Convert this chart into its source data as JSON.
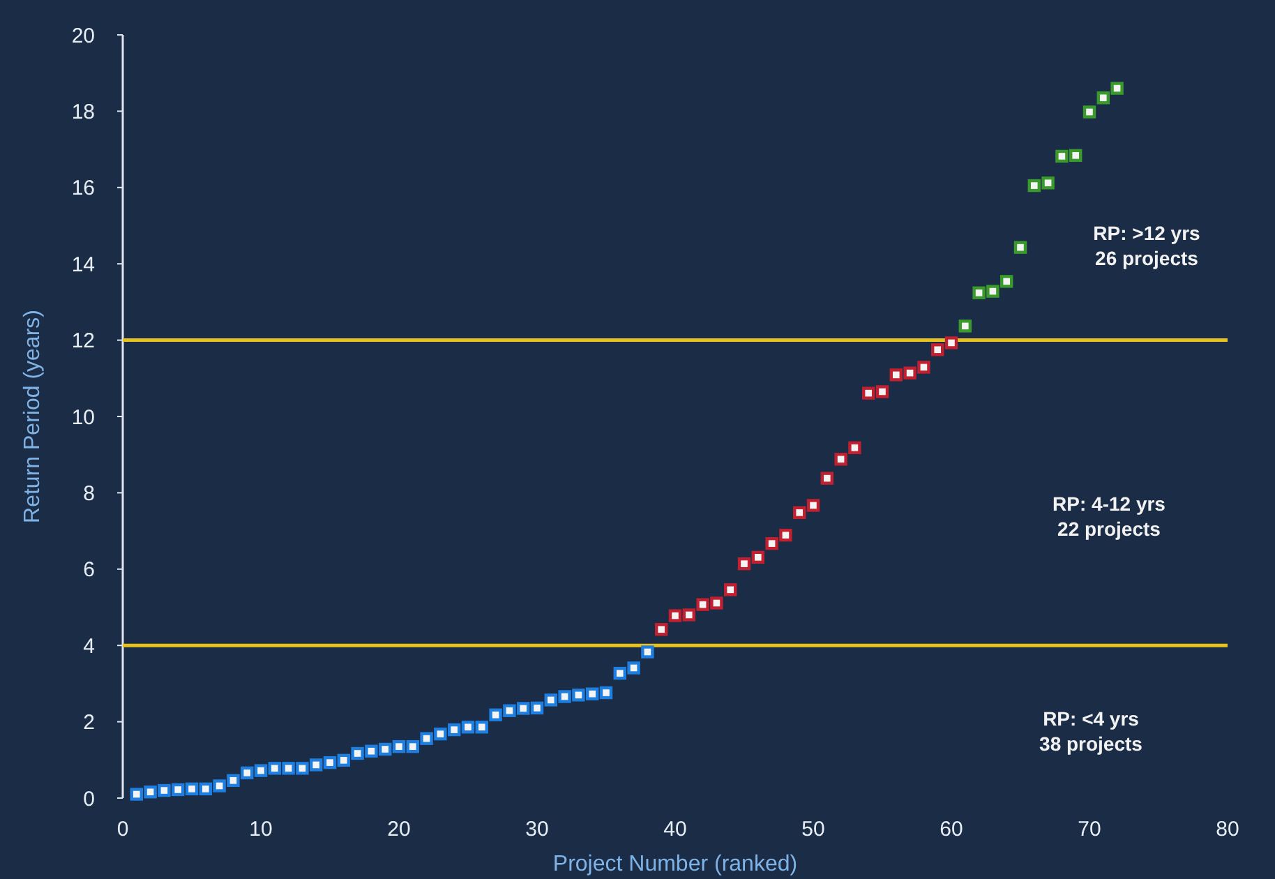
{
  "chart_data": {
    "type": "scatter",
    "xlabel": "Project Number (ranked)",
    "ylabel": "Return Period (years)",
    "xlim": [
      0,
      80
    ],
    "xticks": [
      0,
      10,
      20,
      30,
      40,
      50,
      60,
      70,
      80
    ],
    "ylim": [
      0,
      20
    ],
    "yticks": [
      0,
      2,
      4,
      6,
      8,
      10,
      12,
      14,
      16,
      18,
      20
    ],
    "grid": false,
    "marker": "square",
    "series": [
      {
        "color": "#1f7fe0",
        "x": [
          1,
          2,
          3,
          4,
          5,
          6,
          7,
          8,
          9,
          10,
          11,
          12,
          13,
          14,
          15,
          16,
          17,
          18,
          19,
          20,
          21,
          22,
          23,
          24,
          25,
          26,
          27,
          28,
          29,
          30,
          31,
          32,
          33,
          34,
          35,
          36,
          37,
          38
        ],
        "values": [
          0.1,
          0.16,
          0.2,
          0.22,
          0.24,
          0.24,
          0.32,
          0.46,
          0.66,
          0.72,
          0.78,
          0.78,
          0.78,
          0.87,
          0.93,
          0.99,
          1.17,
          1.23,
          1.28,
          1.35,
          1.35,
          1.56,
          1.68,
          1.79,
          1.86,
          1.86,
          2.18,
          2.29,
          2.35,
          2.36,
          2.57,
          2.66,
          2.7,
          2.73,
          2.76,
          3.27,
          3.41,
          3.83
        ]
      },
      {
        "color": "#c02030",
        "x": [
          39,
          40,
          41,
          42,
          43,
          44,
          45,
          46,
          47,
          48,
          49,
          50,
          51,
          52,
          53,
          54,
          55,
          56,
          57,
          58,
          59,
          60
        ],
        "values": [
          4.42,
          4.78,
          4.8,
          5.07,
          5.11,
          5.46,
          6.14,
          6.31,
          6.67,
          6.89,
          7.48,
          7.67,
          8.38,
          8.88,
          9.18,
          10.61,
          10.65,
          11.09,
          11.14,
          11.29,
          11.75,
          11.93
        ]
      },
      {
        "color": "#3a9a2a",
        "x": [
          61,
          62,
          63,
          64,
          65,
          66,
          67,
          68,
          69,
          70,
          71,
          72
        ],
        "values": [
          12.37,
          13.24,
          13.28,
          13.54,
          14.43,
          16.05,
          16.12,
          16.82,
          16.84,
          17.98,
          18.35,
          18.6
        ]
      }
    ],
    "ref_lines": [
      {
        "axis": "y",
        "value": 12,
        "color": "#e8c21e"
      },
      {
        "axis": "y",
        "value": 4,
        "color": "#e8c21e"
      }
    ],
    "annotations": [
      "RP: >12 yrs\n26 projects",
      "RP: 4-12 yrs\n22 projects",
      "RP: <4 yrs\n38 projects"
    ]
  }
}
